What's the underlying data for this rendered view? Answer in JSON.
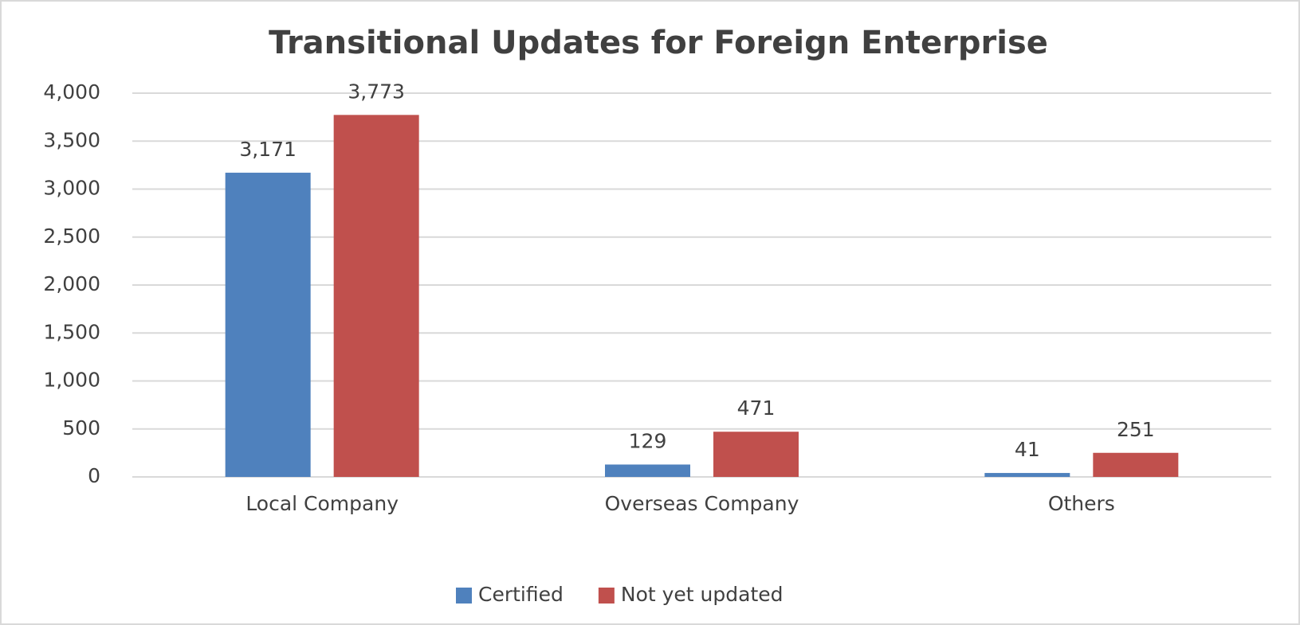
{
  "chart_data": {
    "type": "bar",
    "title": "Transitional Updates for Foreign Enterprise",
    "categories": [
      "Local Company",
      "Overseas Company",
      "Others"
    ],
    "series": [
      {
        "name": "Certified",
        "color": "#4f81bd",
        "values": [
          3171,
          129,
          41
        ],
        "value_labels": [
          "3,171",
          "129",
          "41"
        ]
      },
      {
        "name": "Not yet updated",
        "color": "#c0504d",
        "values": [
          3773,
          471,
          251
        ],
        "value_labels": [
          "3,773",
          "471",
          "251"
        ]
      }
    ],
    "ylim": [
      0,
      4000
    ],
    "yticks": [
      0,
      500,
      {
        "value": 1000,
        "label": "1,000"
      },
      {
        "value": 1500,
        "label": "1,500"
      },
      {
        "value": 2000,
        "label": "2,000"
      },
      {
        "value": 2500,
        "label": "2,500"
      },
      {
        "value": 3000,
        "label": "3,000"
      },
      {
        "value": 3500,
        "label": "3,500"
      },
      {
        "value": 4000,
        "label": "4,000"
      }
    ],
    "grid": true,
    "legend": "bottom"
  }
}
